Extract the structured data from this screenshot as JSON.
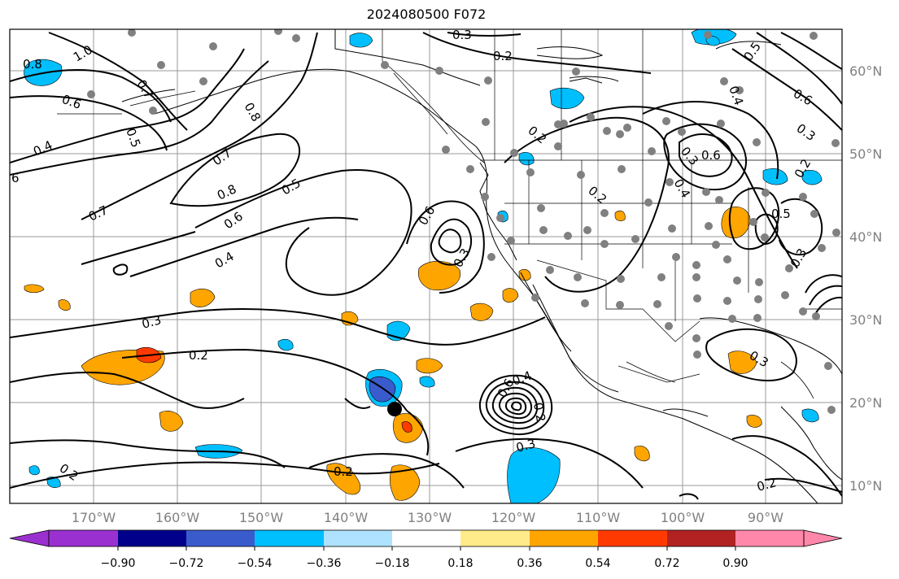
{
  "title": "2024080500 F072",
  "lon_ticks": [
    "170°W",
    "160°W",
    "150°W",
    "140°W",
    "130°W",
    "120°W",
    "110°W",
    "100°W",
    "90°W"
  ],
  "lat_ticks": [
    "60°N",
    "50°N",
    "40°N",
    "30°N",
    "20°N",
    "10°N"
  ],
  "contour_labels": [
    "0.8",
    "1.0",
    "0.6",
    "0.7",
    "0.5",
    "0.4",
    "6",
    "0.8",
    "0.7",
    "0.8",
    "0.5",
    "0.7",
    "0.6",
    "0.4",
    "0.3",
    "0.2",
    "0.3",
    "0.2",
    "0.6",
    "0.3",
    "0.2",
    "0.2",
    "0.5",
    "0.4",
    "0.6",
    "0.3",
    "0.6",
    "0.3",
    "0.4",
    "0.5",
    "0.3",
    "0.3",
    "0.2",
    "0.4",
    "0.6",
    "0.2",
    "0.3",
    "0.2",
    "0.2",
    "0.2"
  ],
  "colorbar": {
    "colors": [
      "#9b30d0",
      "#00008b",
      "#3a5bcc",
      "#00bfff",
      "#aee2ff",
      "#ffffff",
      "#ffeb8a",
      "#ffa500",
      "#ff3a00",
      "#b22222",
      "#ff88aa"
    ],
    "tick_labels": [
      "−0.90",
      "−0.72",
      "−0.54",
      "−0.36",
      "−0.18",
      "0.18",
      "0.36",
      "0.54",
      "0.72",
      "0.90"
    ]
  },
  "colors": {
    "land_outline": "#000000",
    "contour": "#000000",
    "grid": "#999999",
    "station_dot": "#808080"
  }
}
